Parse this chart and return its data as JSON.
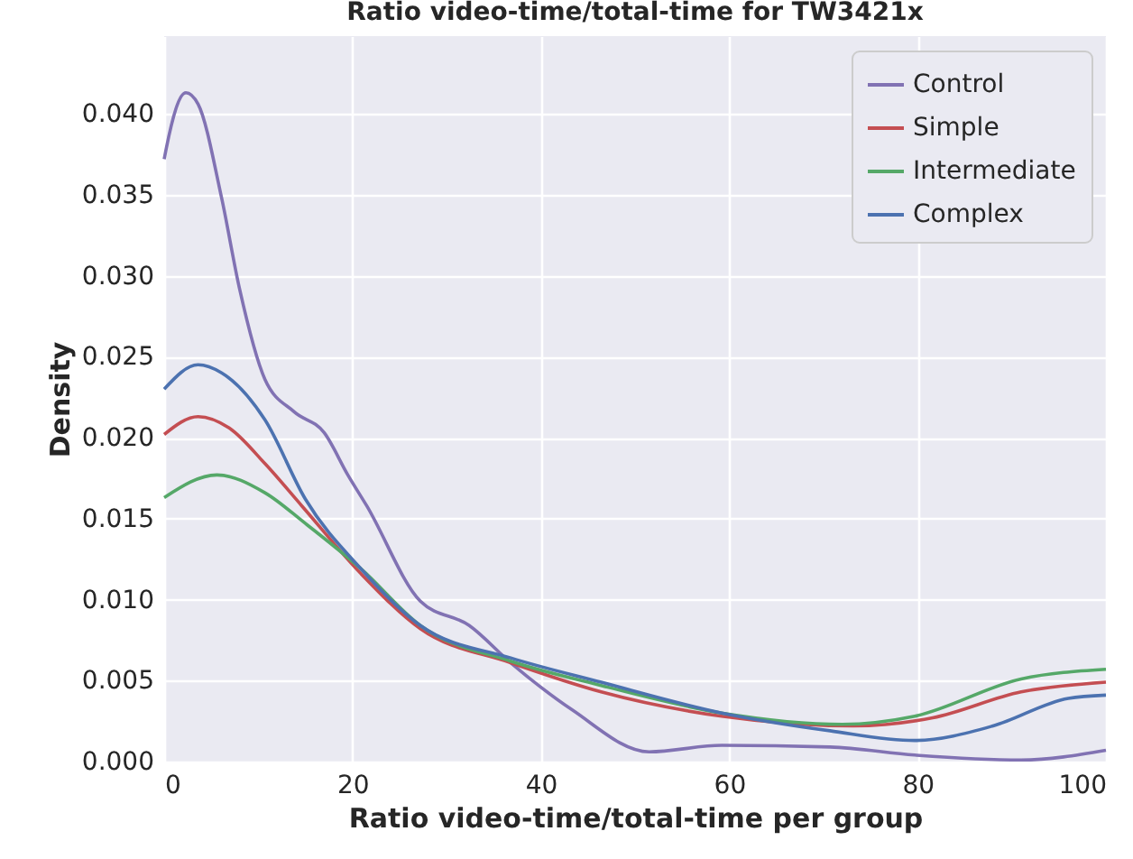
{
  "chart_data": {
    "type": "line",
    "title": "Ratio video-time/total-time for TW3421x",
    "xlabel": "Ratio video-time/total-time per group",
    "ylabel": "Density",
    "xlim": [
      0,
      100
    ],
    "xticks": [
      0,
      20,
      40,
      60,
      80,
      100
    ],
    "ylim": [
      0,
      0.0448
    ],
    "yticks": [
      {
        "value": 0,
        "label": "0.000"
      },
      {
        "value": 0.005,
        "label": "0.005"
      },
      {
        "value": 0.01,
        "label": "0.010"
      },
      {
        "value": 0.015,
        "label": "0.015"
      },
      {
        "value": 0.02,
        "label": "0.020"
      },
      {
        "value": 0.025,
        "label": "0.025"
      },
      {
        "value": 0.03,
        "label": "0.030"
      },
      {
        "value": 0.035,
        "label": "0.035"
      },
      {
        "value": 0.04,
        "label": "0.040"
      }
    ],
    "grid": true,
    "legend": "top right",
    "marker": "none",
    "line_style": "solid",
    "series": [
      {
        "name": "Control",
        "color": "#8172b3",
        "x": [
          0,
          0.2,
          2.3,
          3.6,
          6.1,
          8,
          10.7,
          13.8,
          17,
          19.5,
          21.5,
          27.2,
          32.4,
          36.8,
          43.3,
          51.5,
          59.2,
          70.7,
          79.7,
          91,
          100
        ],
        "values": [
          0.0372,
          0.0378,
          0.0413,
          0.0406,
          0.0348,
          0.0292,
          0.0236,
          0.0216,
          0.0203,
          0.0177,
          0.0158,
          0.0099,
          0.0084,
          0.0061,
          0.0032,
          0.0006,
          0.001,
          0.0009,
          0.0004,
          0.0001,
          0.0007
        ]
      },
      {
        "name": "Simple",
        "color": "#c44e52",
        "x": [
          0,
          3.6,
          6.9,
          10.7,
          14.6,
          20.9,
          27.2,
          36.8,
          46.4,
          59.2,
          73.2,
          81.6,
          91,
          100
        ],
        "values": [
          0.0202,
          0.0213,
          0.0206,
          0.0184,
          0.0158,
          0.0116,
          0.0082,
          0.0061,
          0.0043,
          0.0028,
          0.0022,
          0.0027,
          0.0043,
          0.0049
        ]
      },
      {
        "name": "Intermediate",
        "color": "#55a868",
        "x": [
          0,
          5.6,
          10.7,
          15,
          20.9,
          27.2,
          36.8,
          46.4,
          59.2,
          72,
          79.7,
          91,
          100
        ],
        "values": [
          0.0163,
          0.0177,
          0.0166,
          0.0147,
          0.0119,
          0.0084,
          0.0062,
          0.0047,
          0.003,
          0.0023,
          0.0028,
          0.0051,
          0.0057
        ]
      },
      {
        "name": "Complex",
        "color": "#4c72b0",
        "x": [
          0,
          3.6,
          6.1,
          10.7,
          15,
          20.9,
          27.2,
          36.8,
          46.4,
          59.2,
          70.7,
          79.7,
          88,
          96,
          100
        ],
        "values": [
          0.023,
          0.0245,
          0.024,
          0.0211,
          0.0162,
          0.0119,
          0.0084,
          0.0064,
          0.0049,
          0.003,
          0.0019,
          0.0013,
          0.0022,
          0.0039,
          0.0041
        ]
      }
    ]
  }
}
